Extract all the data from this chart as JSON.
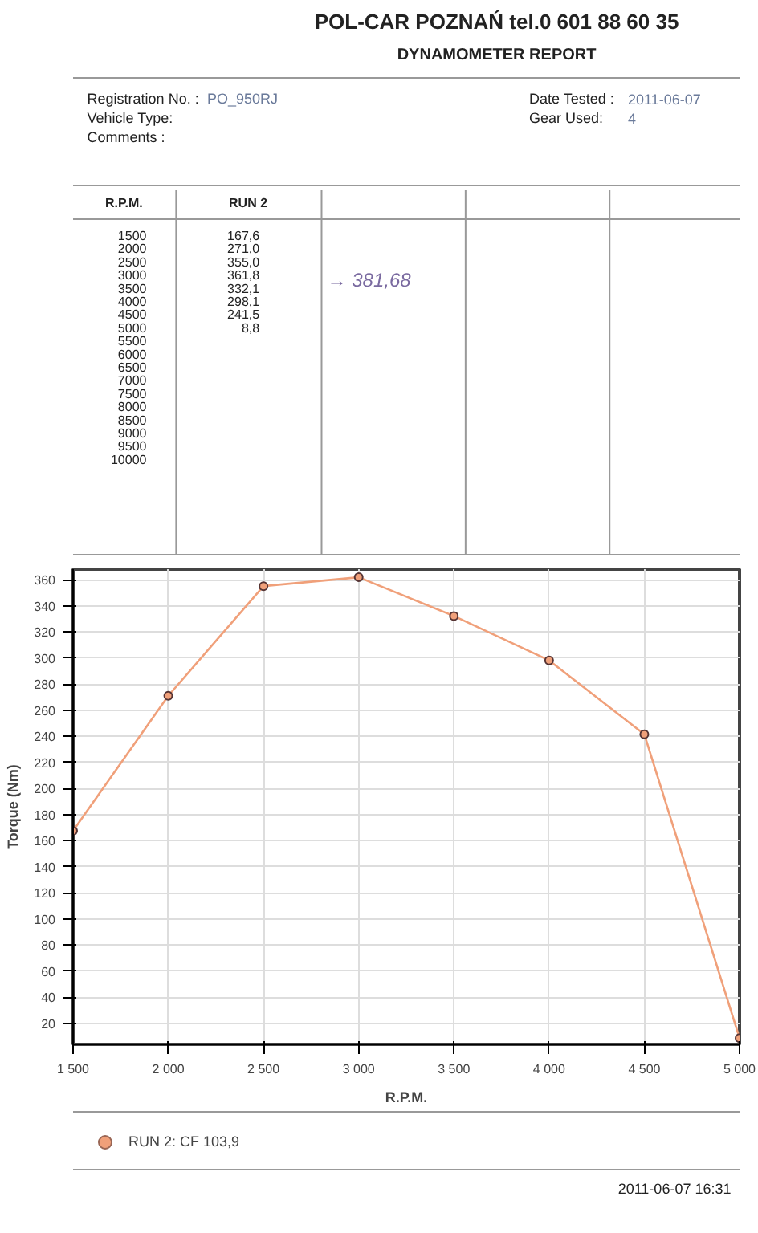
{
  "chart_data": {
    "type": "line",
    "title": "POL-CAR POZNAŃ tel.0 601 88 60 35",
    "subtitle": "DYNAMOMETER REPORT",
    "xlabel": "R.P.M.",
    "ylabel": "Torque (Nm)",
    "x": [
      1500,
      2000,
      2500,
      3000,
      3500,
      4000,
      4500,
      5000
    ],
    "series": [
      {
        "name": "RUN 2: CF 103,9",
        "color": "#f0a07a",
        "values": [
          167.6,
          271.0,
          355.0,
          361.8,
          332.1,
          298.1,
          241.5,
          8.8
        ]
      }
    ],
    "xlim": [
      1500,
      5000
    ],
    "ylim": [
      4,
      368
    ],
    "xticks": [
      {
        "value": 1500,
        "label": "1 500"
      },
      {
        "value": 2000,
        "label": "2 000"
      },
      {
        "value": 2500,
        "label": "2 500"
      },
      {
        "value": 3000,
        "label": "3 000"
      },
      {
        "value": 3500,
        "label": "3 500"
      },
      {
        "value": 4000,
        "label": "4 000"
      },
      {
        "value": 4500,
        "label": "4 500"
      },
      {
        "value": 5000,
        "label": "5 000"
      }
    ],
    "yticks": [
      20,
      40,
      60,
      80,
      100,
      120,
      140,
      160,
      180,
      200,
      220,
      240,
      260,
      280,
      300,
      320,
      340,
      360
    ],
    "grid": true,
    "legend": "bottom left",
    "marker": "circle",
    "line_style": "solid",
    "annotations": [
      "Registration No. :",
      "PO_950RJ",
      "Vehicle Type:",
      "Comments :",
      "Date Tested :",
      "2011-06-07",
      "Gear Used:",
      "4",
      "RUN 2",
      "→ 381,68",
      "1500",
      "2000",
      "2500",
      "3000",
      "3500",
      "4000",
      "4500",
      "5000",
      "5500",
      "6000",
      "6500",
      "7000",
      "7500",
      "8000",
      "8500",
      "9000",
      "9500",
      "10000",
      "167,6",
      "271,0",
      "355,0",
      "361,8",
      "332,1",
      "298,1",
      "241,5",
      "8,8",
      "2011-06-07 16:31"
    ]
  }
}
